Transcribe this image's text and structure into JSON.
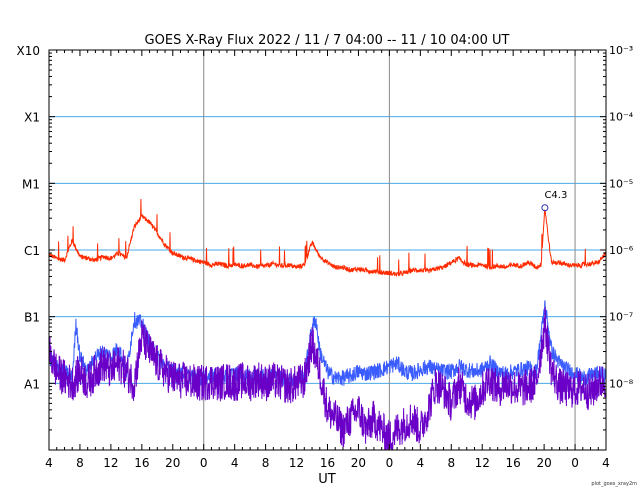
{
  "chart_data": {
    "type": "line",
    "title": "GOES X-Ray Flux   2022 / 11 /  7   04:00 -- 11 / 10   04:00   UT",
    "xlabel": "UT",
    "ylabel": "",
    "y_scale": "log",
    "ylim": [
      1e-09,
      0.001
    ],
    "xlim_hours": [
      0,
      72
    ],
    "x_start": "2022-11-07T04:00:00Z",
    "x_end": "2022-11-10T04:00:00Z",
    "x_tick_labels": [
      "4",
      "8",
      "12",
      "16",
      "20",
      "0",
      "4",
      "8",
      "12",
      "16",
      "20",
      "0",
      "4",
      "8",
      "12",
      "16",
      "20",
      "0",
      "4"
    ],
    "y_left_tick_labels": [
      "X10",
      "X1",
      "M1",
      "C1",
      "B1",
      "A1"
    ],
    "y_right_tick_labels": [
      "10⁻³",
      "10⁻⁴",
      "10⁻⁵",
      "10⁻⁶",
      "10⁻⁷",
      "10⁻⁸"
    ],
    "grid": "horizontal lines at 1e-4, 1e-5, 1e-6, 1e-7, 1e-8; vertical lines at day boundaries",
    "colors": {
      "long_channel": "#ff2a00",
      "short_channel_a": "#3a5cff",
      "short_channel_b": "#6a00c8",
      "grid_h": "#4aa8e8",
      "grid_v": "#888888",
      "marker": "#3030c0"
    },
    "annotation": {
      "label": "C4.3",
      "hour": 64.1,
      "value": 4.3e-06
    },
    "series": [
      {
        "hours": [
          0,
          1,
          2,
          3,
          4,
          5,
          6,
          7,
          8,
          9,
          10,
          11,
          12,
          13,
          14,
          15,
          16,
          17,
          18,
          19,
          20,
          21,
          22,
          23,
          24,
          25,
          26,
          27,
          28,
          29,
          30,
          31,
          32,
          33,
          34,
          35,
          36,
          37,
          38,
          39,
          40,
          41,
          42,
          43,
          44,
          45,
          46,
          47,
          48,
          49,
          50,
          51,
          52,
          53,
          54,
          55,
          56,
          57,
          58,
          59,
          60,
          61,
          62,
          63,
          63.6,
          64.1,
          64.8,
          65,
          66,
          67,
          68,
          69,
          70,
          71,
          72
        ],
        "values": [
          8.5e-07,
          7.5e-07,
          7e-07,
          1.4e-06,
          8e-07,
          7.5e-07,
          7e-07,
          8e-07,
          7.5e-07,
          9e-07,
          7.5e-07,
          2.2e-06,
          3.2e-06,
          2.6e-06,
          1.8e-06,
          1.2e-06,
          9e-07,
          8e-07,
          7.5e-07,
          7e-07,
          6.5e-07,
          6e-07,
          6.2e-07,
          5.8e-07,
          6e-07,
          5.8e-07,
          6e-07,
          5.6e-07,
          5.8e-07,
          6.2e-07,
          5.8e-07,
          6e-07,
          5.5e-07,
          6e-07,
          1.3e-06,
          8e-07,
          6.5e-07,
          5.5e-07,
          5.5e-07,
          5e-07,
          5.2e-07,
          4.9e-07,
          4.8e-07,
          4.6e-07,
          4.5e-07,
          4.3e-07,
          4.5e-07,
          5e-07,
          5e-07,
          4.8e-07,
          5.2e-07,
          5.5e-07,
          6.5e-07,
          7.5e-07,
          6e-07,
          5.8e-07,
          6e-07,
          5.5e-07,
          5.8e-07,
          5.5e-07,
          6e-07,
          5.8e-07,
          6.5e-07,
          5.5e-07,
          6e-07,
          4.3e-06,
          8.5e-07,
          6.5e-07,
          6.5e-07,
          6e-07,
          5.8e-07,
          6e-07,
          6.2e-07,
          6.5e-07,
          9e-07
        ]
      },
      {
        "hours": [
          0,
          1,
          2,
          3,
          3.5,
          4,
          5,
          6,
          7,
          8,
          9,
          10,
          11,
          12,
          13,
          14,
          15,
          16,
          17,
          18,
          19,
          20,
          21,
          22,
          23,
          24,
          25,
          26,
          27,
          28,
          29,
          30,
          31,
          32,
          33,
          34,
          34.5,
          35,
          36,
          37,
          38,
          39,
          40,
          41,
          42,
          43,
          44,
          45,
          46,
          47,
          48,
          49,
          50,
          51,
          52,
          53,
          54,
          55,
          56,
          57,
          58,
          59,
          60,
          61,
          62,
          63,
          64.1,
          65,
          66,
          67,
          68,
          69,
          70,
          71,
          72
        ],
        "values": [
          2.5e-08,
          1.8e-08,
          1.5e-08,
          1.2e-08,
          8e-08,
          2.5e-08,
          1.5e-08,
          2.5e-08,
          3e-08,
          2.5e-08,
          3.5e-08,
          1.5e-08,
          9e-08,
          8e-08,
          4e-08,
          2.5e-08,
          1.8e-08,
          1.5e-08,
          1.5e-08,
          1.3e-08,
          1.2e-08,
          1.2e-08,
          1.3e-08,
          1.2e-08,
          1.3e-08,
          1.4e-08,
          1.3e-08,
          1.2e-08,
          1.4e-08,
          1.3e-08,
          1.4e-08,
          1.2e-08,
          1.1e-08,
          1.2e-08,
          1.3e-08,
          7e-08,
          9e-08,
          3e-08,
          1.5e-08,
          1.2e-08,
          1.2e-08,
          1.3e-08,
          1.5e-08,
          1.4e-08,
          1.5e-08,
          1.6e-08,
          1.8e-08,
          2e-08,
          1.5e-08,
          1.4e-08,
          1.6e-08,
          1.8e-08,
          1.6e-08,
          1.5e-08,
          1.5e-08,
          1.8e-08,
          1.6e-08,
          1.5e-08,
          1.6e-08,
          2e-08,
          1.5e-08,
          1.4e-08,
          1.5e-08,
          1.6e-08,
          1.7e-08,
          1.5e-08,
          1.5e-07,
          3e-08,
          2e-08,
          1.6e-08,
          1.4e-08,
          1.2e-08,
          1.3e-08,
          1.4e-08,
          1.3e-08
        ]
      },
      {
        "hours": [
          0,
          1,
          2,
          3,
          4,
          5,
          6,
          7,
          8,
          9,
          10,
          11,
          12,
          13,
          14,
          15,
          16,
          17,
          18,
          19,
          20,
          21,
          22,
          23,
          24,
          25,
          26,
          27,
          28,
          29,
          30,
          31,
          32,
          33,
          34,
          35,
          36,
          37,
          38,
          39,
          40,
          41,
          42,
          43,
          44,
          45,
          46,
          47,
          48,
          49,
          50,
          51,
          52,
          53,
          54,
          55,
          56,
          57,
          58,
          59,
          60,
          61,
          62,
          63,
          64.1,
          65,
          66,
          67,
          68,
          69,
          70,
          71,
          72
        ],
        "values": [
          3e-08,
          1.5e-08,
          1.2e-08,
          1e-08,
          1.5e-08,
          1e-08,
          1.5e-08,
          2e-08,
          1.5e-08,
          2e-08,
          1.5e-08,
          1e-08,
          5e-08,
          3e-08,
          2e-08,
          1.5e-08,
          1.2e-08,
          1.1e-08,
          1.1e-08,
          1e-08,
          1e-08,
          1.1e-08,
          1e-08,
          1.1e-08,
          1e-08,
          1.1e-08,
          1e-08,
          1.2e-08,
          1e-08,
          1.1e-08,
          1e-08,
          9e-09,
          1e-08,
          1.1e-08,
          4e-08,
          1.5e-08,
          4e-09,
          3e-09,
          2e-09,
          3e-09,
          4e-09,
          2e-09,
          3e-09,
          2e-09,
          1.5e-09,
          2e-09,
          2.5e-09,
          3e-09,
          2e-09,
          4e-09,
          1e-08,
          8e-09,
          5e-09,
          1e-08,
          6e-09,
          5e-09,
          8e-09,
          1.2e-08,
          8e-09,
          1e-08,
          9e-09,
          8e-09,
          9e-09,
          1e-08,
          8e-08,
          1.5e-08,
          9e-09,
          8e-09,
          8e-09,
          9e-09,
          7e-09,
          1e-08,
          1.1e-08
        ]
      }
    ]
  },
  "footer_note": "plot_goes_xray2m"
}
